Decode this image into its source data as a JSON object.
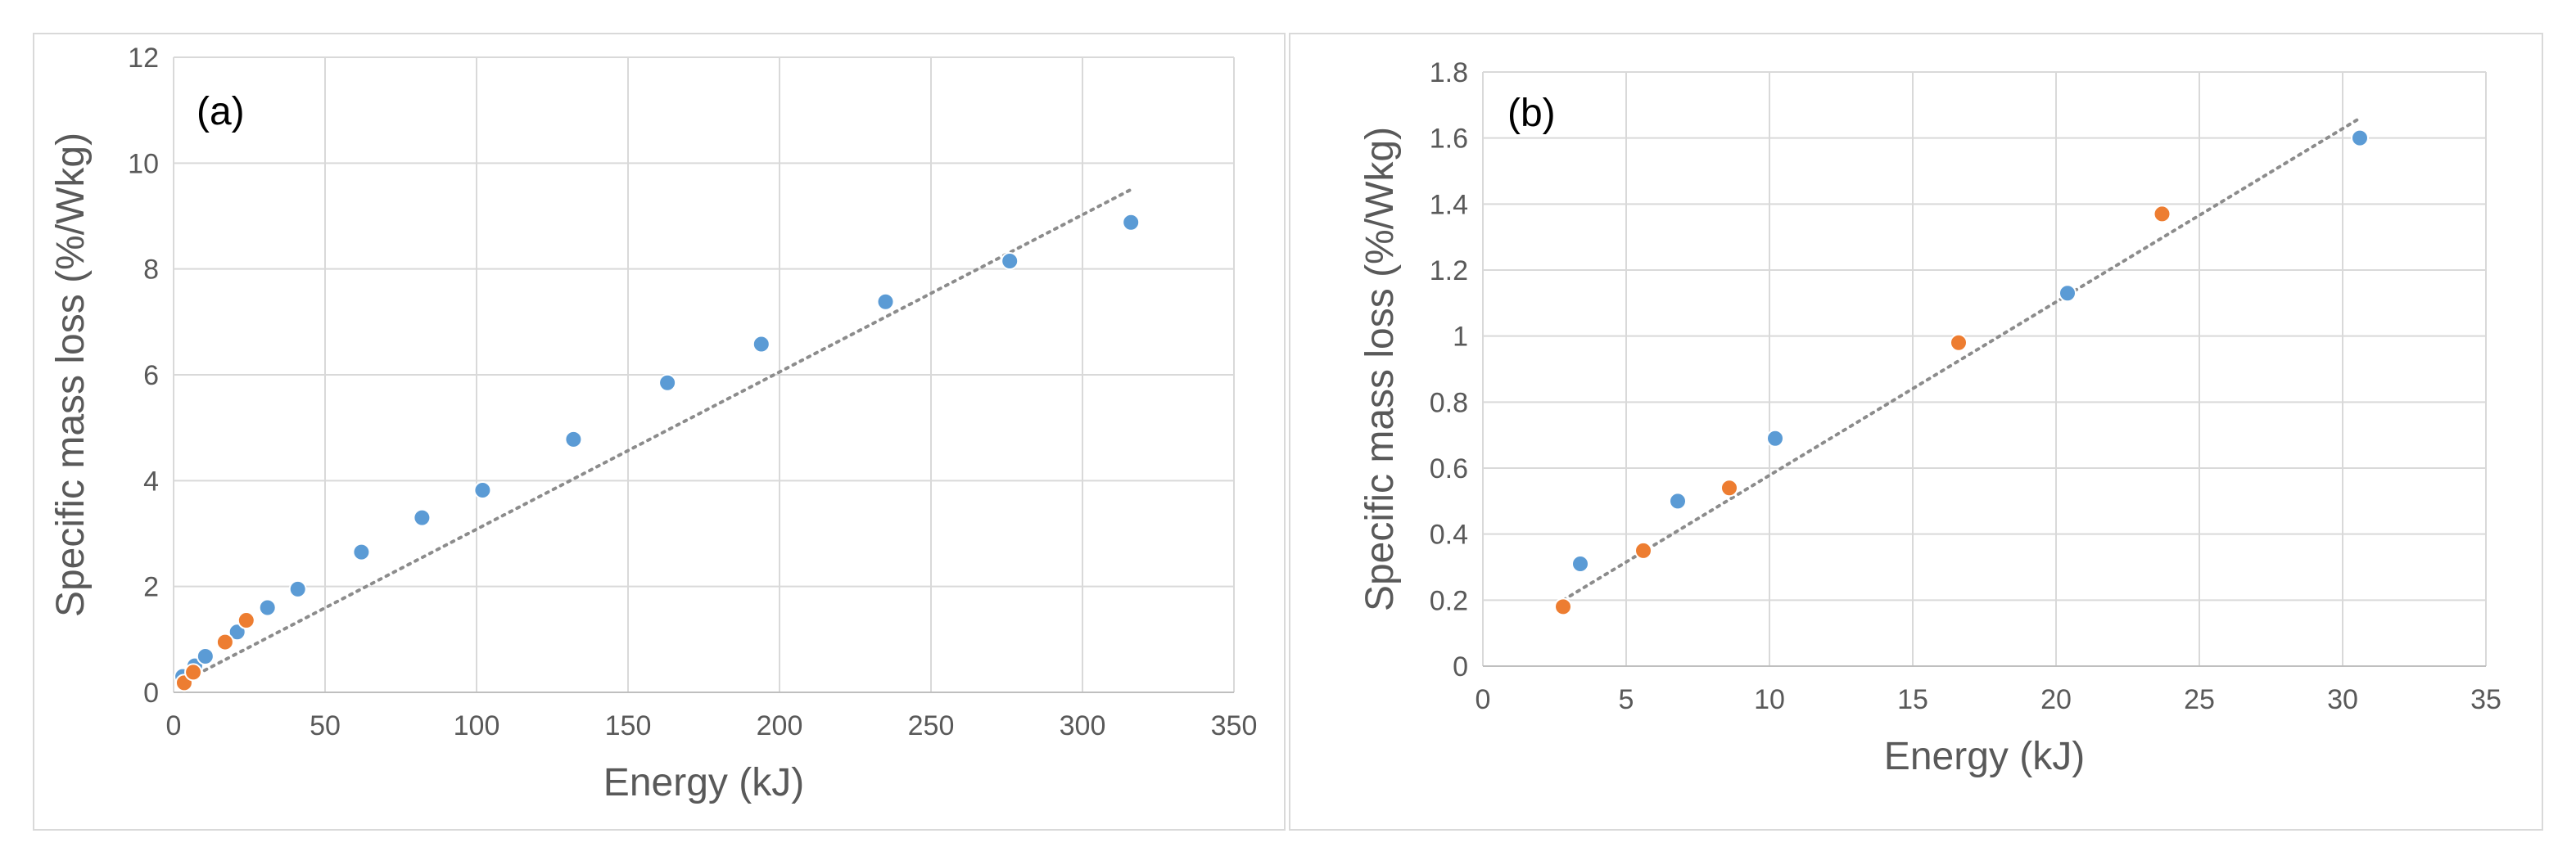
{
  "chart_data": [
    {
      "type": "scatter",
      "label": "(a)",
      "xlabel": "Energy (kJ)",
      "ylabel": "Specific mass loss (%/Wkg)",
      "xlim": [
        0,
        350
      ],
      "ylim": [
        0,
        12
      ],
      "xticks": [
        "0",
        "50",
        "100",
        "150",
        "200",
        "250",
        "300",
        "350"
      ],
      "yticks": [
        "0",
        "2",
        "4",
        "6",
        "8",
        "10",
        "12"
      ],
      "grid": true,
      "series": [
        {
          "name": "blue",
          "color": "#5b9bd5",
          "points": [
            [
              3,
              0.3
            ],
            [
              7,
              0.5
            ],
            [
              10.5,
              0.68
            ],
            [
              21,
              1.14
            ],
            [
              31,
              1.6
            ],
            [
              41,
              1.95
            ],
            [
              62,
              2.65
            ],
            [
              82,
              3.3
            ],
            [
              102,
              3.82
            ],
            [
              132,
              4.78
            ],
            [
              163,
              5.85
            ],
            [
              194,
              6.58
            ],
            [
              235,
              7.38
            ],
            [
              276,
              8.15
            ],
            [
              316,
              8.88
            ]
          ]
        },
        {
          "name": "orange",
          "color": "#ed7d31",
          "points": [
            [
              3.5,
              0.18
            ],
            [
              6.5,
              0.38
            ],
            [
              17,
              0.95
            ],
            [
              24,
              1.36
            ]
          ]
        }
      ],
      "trendline": {
        "color": "#8c8c8c",
        "from": [
          3,
          0.2
        ],
        "to": [
          316,
          9.5
        ]
      }
    },
    {
      "type": "scatter",
      "label": "(b)",
      "xlabel": "Energy (kJ)",
      "ylabel": "Specific mass loss (%/Wkg)",
      "xlim": [
        0,
        35
      ],
      "ylim": [
        0,
        1.8
      ],
      "xticks": [
        "0",
        "5",
        "10",
        "15",
        "20",
        "25",
        "30",
        "35"
      ],
      "yticks": [
        "0",
        "0.2",
        "0.4",
        "0.6",
        "0.8",
        "1",
        "1.2",
        "1.4",
        "1.6",
        "1.8"
      ],
      "grid": true,
      "series": [
        {
          "name": "blue",
          "color": "#5b9bd5",
          "points": [
            [
              3.4,
              0.31
            ],
            [
              6.8,
              0.5
            ],
            [
              10.2,
              0.69
            ],
            [
              20.4,
              1.13
            ],
            [
              30.6,
              1.6
            ]
          ]
        },
        {
          "name": "orange",
          "color": "#ed7d31",
          "points": [
            [
              2.8,
              0.18
            ],
            [
              5.6,
              0.35
            ],
            [
              8.6,
              0.54
            ],
            [
              16.6,
              0.98
            ],
            [
              23.7,
              1.37
            ]
          ]
        }
      ],
      "trendline": {
        "color": "#8c8c8c",
        "from": [
          2.8,
          0.2
        ],
        "to": [
          30.6,
          1.66
        ]
      }
    }
  ]
}
